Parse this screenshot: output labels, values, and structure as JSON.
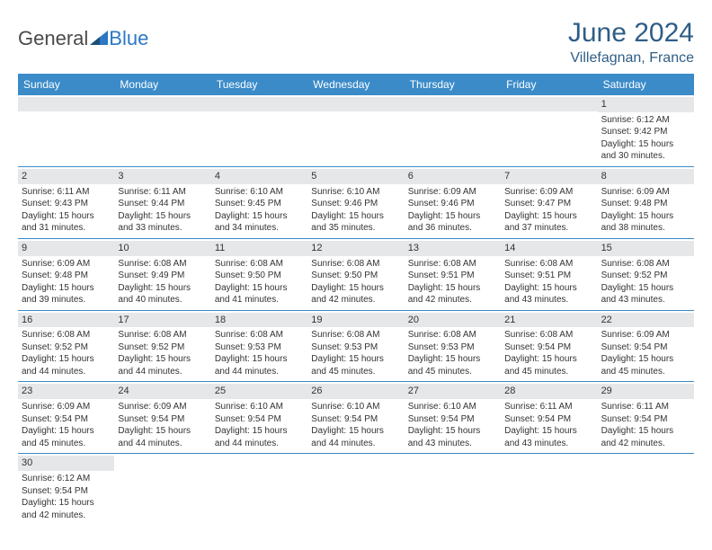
{
  "brand": {
    "general": "General",
    "blue": "Blue"
  },
  "title": {
    "month": "June 2024",
    "location": "Villefagnan, France"
  },
  "colors": {
    "header_bg": "#3b8bc9",
    "header_text": "#ffffff",
    "daynum_bg": "#e6e7e8",
    "title_color": "#2f5d87",
    "row_border": "#3b8bc9"
  },
  "weekdays": [
    "Sunday",
    "Monday",
    "Tuesday",
    "Wednesday",
    "Thursday",
    "Friday",
    "Saturday"
  ],
  "weeks": [
    [
      {
        "n": "",
        "sr": "",
        "ss": "",
        "dl1": "",
        "dl2": ""
      },
      {
        "n": "",
        "sr": "",
        "ss": "",
        "dl1": "",
        "dl2": ""
      },
      {
        "n": "",
        "sr": "",
        "ss": "",
        "dl1": "",
        "dl2": ""
      },
      {
        "n": "",
        "sr": "",
        "ss": "",
        "dl1": "",
        "dl2": ""
      },
      {
        "n": "",
        "sr": "",
        "ss": "",
        "dl1": "",
        "dl2": ""
      },
      {
        "n": "",
        "sr": "",
        "ss": "",
        "dl1": "",
        "dl2": ""
      },
      {
        "n": "1",
        "sr": "Sunrise: 6:12 AM",
        "ss": "Sunset: 9:42 PM",
        "dl1": "Daylight: 15 hours",
        "dl2": "and 30 minutes."
      }
    ],
    [
      {
        "n": "2",
        "sr": "Sunrise: 6:11 AM",
        "ss": "Sunset: 9:43 PM",
        "dl1": "Daylight: 15 hours",
        "dl2": "and 31 minutes."
      },
      {
        "n": "3",
        "sr": "Sunrise: 6:11 AM",
        "ss": "Sunset: 9:44 PM",
        "dl1": "Daylight: 15 hours",
        "dl2": "and 33 minutes."
      },
      {
        "n": "4",
        "sr": "Sunrise: 6:10 AM",
        "ss": "Sunset: 9:45 PM",
        "dl1": "Daylight: 15 hours",
        "dl2": "and 34 minutes."
      },
      {
        "n": "5",
        "sr": "Sunrise: 6:10 AM",
        "ss": "Sunset: 9:46 PM",
        "dl1": "Daylight: 15 hours",
        "dl2": "and 35 minutes."
      },
      {
        "n": "6",
        "sr": "Sunrise: 6:09 AM",
        "ss": "Sunset: 9:46 PM",
        "dl1": "Daylight: 15 hours",
        "dl2": "and 36 minutes."
      },
      {
        "n": "7",
        "sr": "Sunrise: 6:09 AM",
        "ss": "Sunset: 9:47 PM",
        "dl1": "Daylight: 15 hours",
        "dl2": "and 37 minutes."
      },
      {
        "n": "8",
        "sr": "Sunrise: 6:09 AM",
        "ss": "Sunset: 9:48 PM",
        "dl1": "Daylight: 15 hours",
        "dl2": "and 38 minutes."
      }
    ],
    [
      {
        "n": "9",
        "sr": "Sunrise: 6:09 AM",
        "ss": "Sunset: 9:48 PM",
        "dl1": "Daylight: 15 hours",
        "dl2": "and 39 minutes."
      },
      {
        "n": "10",
        "sr": "Sunrise: 6:08 AM",
        "ss": "Sunset: 9:49 PM",
        "dl1": "Daylight: 15 hours",
        "dl2": "and 40 minutes."
      },
      {
        "n": "11",
        "sr": "Sunrise: 6:08 AM",
        "ss": "Sunset: 9:50 PM",
        "dl1": "Daylight: 15 hours",
        "dl2": "and 41 minutes."
      },
      {
        "n": "12",
        "sr": "Sunrise: 6:08 AM",
        "ss": "Sunset: 9:50 PM",
        "dl1": "Daylight: 15 hours",
        "dl2": "and 42 minutes."
      },
      {
        "n": "13",
        "sr": "Sunrise: 6:08 AM",
        "ss": "Sunset: 9:51 PM",
        "dl1": "Daylight: 15 hours",
        "dl2": "and 42 minutes."
      },
      {
        "n": "14",
        "sr": "Sunrise: 6:08 AM",
        "ss": "Sunset: 9:51 PM",
        "dl1": "Daylight: 15 hours",
        "dl2": "and 43 minutes."
      },
      {
        "n": "15",
        "sr": "Sunrise: 6:08 AM",
        "ss": "Sunset: 9:52 PM",
        "dl1": "Daylight: 15 hours",
        "dl2": "and 43 minutes."
      }
    ],
    [
      {
        "n": "16",
        "sr": "Sunrise: 6:08 AM",
        "ss": "Sunset: 9:52 PM",
        "dl1": "Daylight: 15 hours",
        "dl2": "and 44 minutes."
      },
      {
        "n": "17",
        "sr": "Sunrise: 6:08 AM",
        "ss": "Sunset: 9:52 PM",
        "dl1": "Daylight: 15 hours",
        "dl2": "and 44 minutes."
      },
      {
        "n": "18",
        "sr": "Sunrise: 6:08 AM",
        "ss": "Sunset: 9:53 PM",
        "dl1": "Daylight: 15 hours",
        "dl2": "and 44 minutes."
      },
      {
        "n": "19",
        "sr": "Sunrise: 6:08 AM",
        "ss": "Sunset: 9:53 PM",
        "dl1": "Daylight: 15 hours",
        "dl2": "and 45 minutes."
      },
      {
        "n": "20",
        "sr": "Sunrise: 6:08 AM",
        "ss": "Sunset: 9:53 PM",
        "dl1": "Daylight: 15 hours",
        "dl2": "and 45 minutes."
      },
      {
        "n": "21",
        "sr": "Sunrise: 6:08 AM",
        "ss": "Sunset: 9:54 PM",
        "dl1": "Daylight: 15 hours",
        "dl2": "and 45 minutes."
      },
      {
        "n": "22",
        "sr": "Sunrise: 6:09 AM",
        "ss": "Sunset: 9:54 PM",
        "dl1": "Daylight: 15 hours",
        "dl2": "and 45 minutes."
      }
    ],
    [
      {
        "n": "23",
        "sr": "Sunrise: 6:09 AM",
        "ss": "Sunset: 9:54 PM",
        "dl1": "Daylight: 15 hours",
        "dl2": "and 45 minutes."
      },
      {
        "n": "24",
        "sr": "Sunrise: 6:09 AM",
        "ss": "Sunset: 9:54 PM",
        "dl1": "Daylight: 15 hours",
        "dl2": "and 44 minutes."
      },
      {
        "n": "25",
        "sr": "Sunrise: 6:10 AM",
        "ss": "Sunset: 9:54 PM",
        "dl1": "Daylight: 15 hours",
        "dl2": "and 44 minutes."
      },
      {
        "n": "26",
        "sr": "Sunrise: 6:10 AM",
        "ss": "Sunset: 9:54 PM",
        "dl1": "Daylight: 15 hours",
        "dl2": "and 44 minutes."
      },
      {
        "n": "27",
        "sr": "Sunrise: 6:10 AM",
        "ss": "Sunset: 9:54 PM",
        "dl1": "Daylight: 15 hours",
        "dl2": "and 43 minutes."
      },
      {
        "n": "28",
        "sr": "Sunrise: 6:11 AM",
        "ss": "Sunset: 9:54 PM",
        "dl1": "Daylight: 15 hours",
        "dl2": "and 43 minutes."
      },
      {
        "n": "29",
        "sr": "Sunrise: 6:11 AM",
        "ss": "Sunset: 9:54 PM",
        "dl1": "Daylight: 15 hours",
        "dl2": "and 42 minutes."
      }
    ],
    [
      {
        "n": "30",
        "sr": "Sunrise: 6:12 AM",
        "ss": "Sunset: 9:54 PM",
        "dl1": "Daylight: 15 hours",
        "dl2": "and 42 minutes."
      },
      {
        "n": "",
        "sr": "",
        "ss": "",
        "dl1": "",
        "dl2": ""
      },
      {
        "n": "",
        "sr": "",
        "ss": "",
        "dl1": "",
        "dl2": ""
      },
      {
        "n": "",
        "sr": "",
        "ss": "",
        "dl1": "",
        "dl2": ""
      },
      {
        "n": "",
        "sr": "",
        "ss": "",
        "dl1": "",
        "dl2": ""
      },
      {
        "n": "",
        "sr": "",
        "ss": "",
        "dl1": "",
        "dl2": ""
      },
      {
        "n": "",
        "sr": "",
        "ss": "",
        "dl1": "",
        "dl2": ""
      }
    ]
  ]
}
